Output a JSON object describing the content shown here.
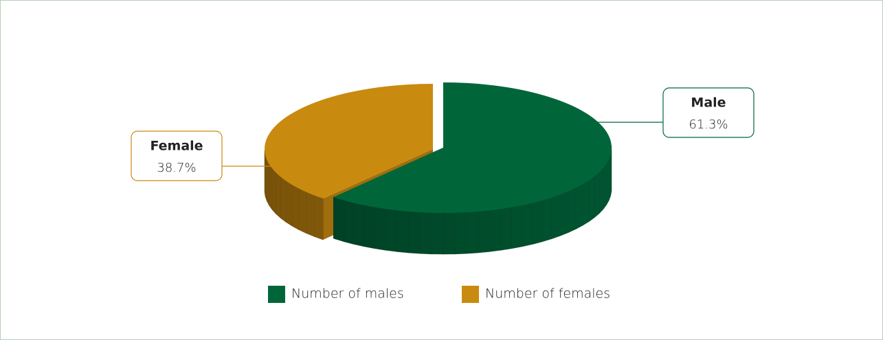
{
  "chart_data": {
    "type": "pie",
    "categories": [
      "Number of males",
      "Number of females"
    ],
    "labels": [
      "Male",
      "Female"
    ],
    "values": [
      61.3,
      38.7
    ],
    "value_labels": [
      "61.3%",
      "38.7%"
    ],
    "colors": [
      "#00663a",
      "#c98a10"
    ]
  }
}
